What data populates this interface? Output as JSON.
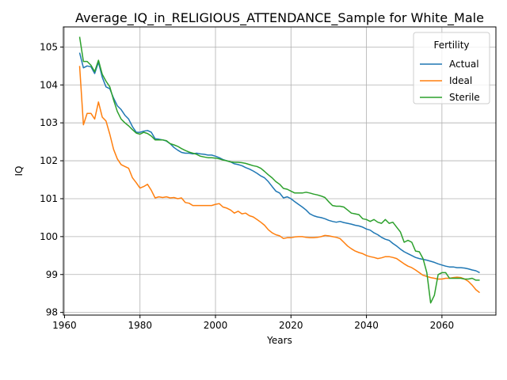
{
  "chart_data": {
    "type": "line",
    "title": "Average_IQ_in_RELIGIOUS_ATTENDANCE_Sample for White_Male",
    "xlabel": "Years",
    "ylabel": "IQ",
    "xlim": [
      1959.7,
      2074.3
    ],
    "ylim": [
      97.93,
      105.53
    ],
    "x_ticks": [
      1960,
      1980,
      2000,
      2020,
      2040,
      2060
    ],
    "y_ticks": [
      98,
      99,
      100,
      101,
      102,
      103,
      104,
      105
    ],
    "grid": true,
    "legend": {
      "title": "Fertility",
      "placement": "upper right"
    },
    "x": [
      1964,
      1965,
      1966,
      1967,
      1968,
      1969,
      1970,
      1971,
      1972,
      1973,
      1974,
      1975,
      1976,
      1977,
      1978,
      1979,
      1980,
      1981,
      1982,
      1983,
      1984,
      1985,
      1986,
      1987,
      1988,
      1989,
      1990,
      1991,
      1992,
      1993,
      1994,
      1995,
      1996,
      1997,
      1998,
      1999,
      2000,
      2001,
      2002,
      2003,
      2004,
      2005,
      2006,
      2007,
      2008,
      2009,
      2010,
      2011,
      2012,
      2013,
      2014,
      2015,
      2016,
      2017,
      2018,
      2019,
      2020,
      2021,
      2022,
      2023,
      2024,
      2025,
      2026,
      2027,
      2028,
      2029,
      2030,
      2031,
      2032,
      2033,
      2034,
      2035,
      2036,
      2037,
      2038,
      2039,
      2040,
      2041,
      2042,
      2043,
      2044,
      2045,
      2046,
      2047,
      2048,
      2049,
      2050,
      2051,
      2052,
      2053,
      2054,
      2055,
      2056,
      2057,
      2058,
      2059,
      2060,
      2061,
      2062,
      2063,
      2064,
      2065,
      2066,
      2067,
      2068,
      2069,
      2070
    ],
    "series": [
      {
        "name": "Actual",
        "color": "#1f77b4",
        "values": [
          104.85,
          104.45,
          104.5,
          104.48,
          104.3,
          104.6,
          104.2,
          103.95,
          103.9,
          103.65,
          103.45,
          103.35,
          103.2,
          103.1,
          102.9,
          102.75,
          102.75,
          102.78,
          102.8,
          102.75,
          102.58,
          102.57,
          102.55,
          102.52,
          102.45,
          102.35,
          102.28,
          102.22,
          102.2,
          102.2,
          102.18,
          102.2,
          102.18,
          102.17,
          102.15,
          102.15,
          102.12,
          102.08,
          102.03,
          102.0,
          101.97,
          101.92,
          101.9,
          101.87,
          101.82,
          101.78,
          101.73,
          101.67,
          101.6,
          101.55,
          101.45,
          101.32,
          101.2,
          101.15,
          101.02,
          101.05,
          101.0,
          100.92,
          100.85,
          100.78,
          100.7,
          100.6,
          100.55,
          100.52,
          100.5,
          100.47,
          100.43,
          100.4,
          100.38,
          100.4,
          100.37,
          100.35,
          100.33,
          100.3,
          100.28,
          100.25,
          100.2,
          100.17,
          100.1,
          100.05,
          99.98,
          99.93,
          99.9,
          99.82,
          99.75,
          99.67,
          99.6,
          99.55,
          99.5,
          99.45,
          99.42,
          99.4,
          99.38,
          99.35,
          99.32,
          99.28,
          99.25,
          99.22,
          99.2,
          99.2,
          99.18,
          99.18,
          99.17,
          99.15,
          99.12,
          99.1,
          99.05
        ]
      },
      {
        "name": "Ideal",
        "color": "#ff7f0e",
        "values": [
          104.5,
          102.95,
          103.25,
          103.25,
          103.1,
          103.55,
          103.15,
          103.05,
          102.7,
          102.3,
          102.05,
          101.9,
          101.85,
          101.8,
          101.55,
          101.42,
          101.28,
          101.32,
          101.38,
          101.22,
          101.02,
          101.05,
          101.03,
          101.05,
          101.02,
          101.03,
          101.0,
          101.02,
          100.9,
          100.88,
          100.82,
          100.82,
          100.82,
          100.82,
          100.82,
          100.82,
          100.85,
          100.87,
          100.78,
          100.75,
          100.7,
          100.62,
          100.67,
          100.6,
          100.62,
          100.55,
          100.52,
          100.45,
          100.38,
          100.3,
          100.18,
          100.1,
          100.05,
          100.02,
          99.95,
          99.97,
          99.97,
          99.99,
          100.0,
          100.0,
          99.98,
          99.97,
          99.97,
          99.98,
          100.0,
          100.03,
          100.02,
          100.0,
          99.98,
          99.95,
          99.85,
          99.75,
          99.68,
          99.62,
          99.58,
          99.55,
          99.5,
          99.47,
          99.45,
          99.42,
          99.44,
          99.47,
          99.47,
          99.45,
          99.42,
          99.35,
          99.28,
          99.22,
          99.18,
          99.12,
          99.05,
          98.98,
          98.95,
          98.92,
          98.9,
          98.88,
          98.88,
          98.9,
          98.9,
          98.92,
          98.93,
          98.92,
          98.88,
          98.82,
          98.72,
          98.6,
          98.52
        ]
      },
      {
        "name": "Sterile",
        "color": "#2ca02c",
        "values": [
          105.27,
          104.62,
          104.62,
          104.52,
          104.35,
          104.65,
          104.28,
          104.1,
          103.95,
          103.6,
          103.3,
          103.1,
          103.0,
          102.92,
          102.82,
          102.73,
          102.7,
          102.75,
          102.72,
          102.65,
          102.55,
          102.55,
          102.55,
          102.53,
          102.45,
          102.42,
          102.38,
          102.32,
          102.27,
          102.23,
          102.2,
          102.17,
          102.12,
          102.1,
          102.08,
          102.08,
          102.07,
          102.05,
          102.02,
          102.0,
          101.97,
          101.96,
          101.96,
          101.95,
          101.93,
          101.9,
          101.87,
          101.85,
          101.8,
          101.72,
          101.63,
          101.55,
          101.45,
          101.38,
          101.27,
          101.25,
          101.2,
          101.15,
          101.15,
          101.15,
          101.17,
          101.15,
          101.12,
          101.1,
          101.07,
          101.03,
          100.92,
          100.82,
          100.8,
          100.8,
          100.78,
          100.7,
          100.62,
          100.6,
          100.58,
          100.47,
          100.45,
          100.4,
          100.45,
          100.38,
          100.35,
          100.45,
          100.35,
          100.38,
          100.25,
          100.12,
          99.85,
          99.9,
          99.85,
          99.62,
          99.6,
          99.42,
          99.05,
          98.25,
          98.45,
          99.0,
          99.05,
          99.05,
          98.9,
          98.9,
          98.9,
          98.9,
          98.88,
          98.88,
          98.9,
          98.85,
          98.85
        ]
      }
    ]
  }
}
